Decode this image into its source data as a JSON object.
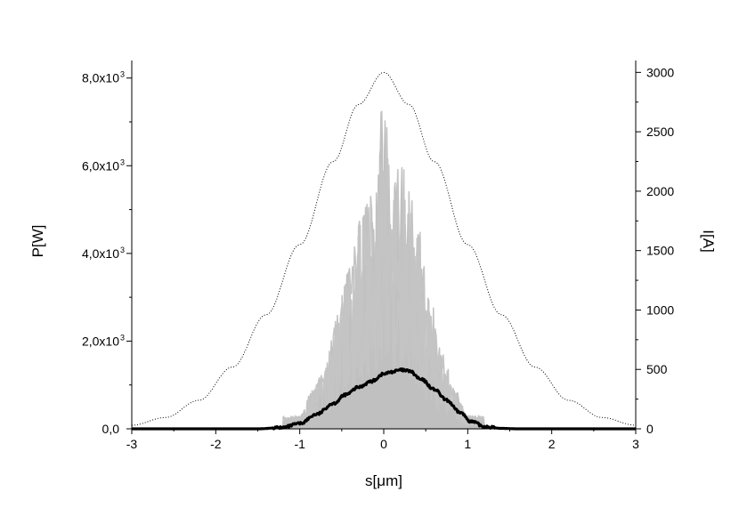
{
  "chart_data": {
    "type": "line",
    "xlabel": "s[μm]",
    "ylabel_left": "P[W]",
    "ylabel_right": "I[A]",
    "xlim": [
      -3,
      3
    ],
    "ylim_left": [
      0,
      8400
    ],
    "ylim_right": [
      0,
      3100
    ],
    "x_ticks": [
      "-3",
      "-2",
      "-1",
      "0",
      "1",
      "2",
      "3"
    ],
    "y_left_ticks": [
      {
        "value": 0,
        "mantissa": "0,0",
        "exp": ""
      },
      {
        "value": 2000,
        "mantissa": "2,0x10",
        "exp": "3"
      },
      {
        "value": 4000,
        "mantissa": "4,0x10",
        "exp": "3"
      },
      {
        "value": 6000,
        "mantissa": "6,0x10",
        "exp": "3"
      },
      {
        "value": 8000,
        "mantissa": "8,0x10",
        "exp": "3"
      }
    ],
    "y_right_ticks": [
      "0",
      "500",
      "1000",
      "1500",
      "2000",
      "2500",
      "3000"
    ],
    "series": [
      {
        "style": "dotted",
        "axis": "right",
        "color": "#000000",
        "x": [
          -3.0,
          -2.6,
          -2.2,
          -1.8,
          -1.4,
          -1.0,
          -0.6,
          -0.3,
          0.0,
          0.3,
          0.6,
          1.0,
          1.4,
          1.8,
          2.2,
          2.6,
          3.0
        ],
        "y": [
          30,
          95,
          240,
          520,
          960,
          1550,
          2250,
          2730,
          3000,
          2730,
          2250,
          1550,
          960,
          520,
          240,
          95,
          30
        ]
      },
      {
        "style": "solid-thick",
        "axis": "left",
        "color": "#000000",
        "x": [
          -3.0,
          -1.5,
          -1.2,
          -1.0,
          -0.8,
          -0.6,
          -0.45,
          -0.3,
          -0.15,
          0.0,
          0.1,
          0.2,
          0.3,
          0.45,
          0.6,
          0.75,
          0.9,
          1.05,
          1.2,
          1.4,
          1.6,
          3.0
        ],
        "y": [
          0,
          0,
          30,
          120,
          330,
          580,
          780,
          950,
          1080,
          1250,
          1300,
          1340,
          1320,
          1120,
          900,
          650,
          380,
          160,
          50,
          10,
          0,
          0
        ]
      },
      {
        "style": "filled-noise",
        "axis": "left",
        "color": "#c0c0c0",
        "peak_x": [
          -1.0,
          -0.85,
          -0.7,
          -0.55,
          -0.4,
          -0.25,
          -0.1,
          0.0,
          0.1,
          0.2,
          0.3,
          0.4,
          0.55,
          0.7,
          0.85,
          1.0
        ],
        "peak_y": [
          300,
          900,
          1450,
          2700,
          3900,
          5100,
          5600,
          7750,
          5400,
          6200,
          5800,
          4700,
          3000,
          1700,
          900,
          300
        ]
      }
    ]
  }
}
